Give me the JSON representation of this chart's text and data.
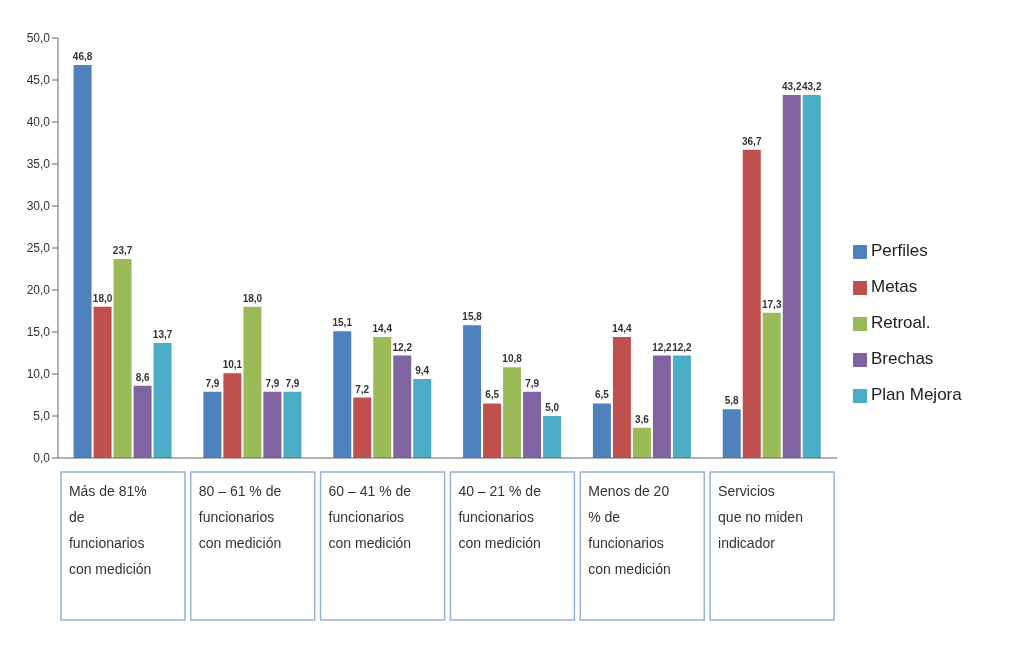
{
  "chart_data": {
    "type": "bar",
    "categories": [
      "Más de 81% de funcionarios con medición",
      "80 – 61 % de funcionarios con medición",
      "60 – 41 % de funcionarios con medición",
      "40 – 21 % de funcionarios con medición",
      "Menos de 20 % de funcionarios con medición",
      "Servicios que no miden indicador"
    ],
    "series": [
      {
        "name": "Perfiles",
        "color": "#4f81bd",
        "values": [
          46.8,
          7.9,
          15.1,
          15.8,
          6.5,
          5.8
        ],
        "value_labels": [
          "46,8",
          "7,9",
          "15,1",
          "15,8",
          "6,5",
          "5,8"
        ]
      },
      {
        "name": "Metas",
        "color": "#c0504d",
        "values": [
          18.0,
          10.1,
          7.2,
          6.5,
          14.4,
          36.7
        ],
        "value_labels": [
          "18,0",
          "10,1",
          "7,2",
          "6,5",
          "14,4",
          "36,7"
        ]
      },
      {
        "name": "Retroal.",
        "color": "#9bbb59",
        "values": [
          23.7,
          18.0,
          14.4,
          10.8,
          3.6,
          17.3
        ],
        "value_labels": [
          "23,7",
          "18,0",
          "14,4",
          "10,8",
          "3,6",
          "17,3"
        ]
      },
      {
        "name": "Brechas",
        "color": "#8064a2",
        "values": [
          8.6,
          7.9,
          12.2,
          7.9,
          12.2,
          43.2
        ],
        "value_labels": [
          "8,6",
          "7,9",
          "12,2",
          "7,9",
          "12,2",
          "43,2"
        ]
      },
      {
        "name": "Plan Mejora",
        "color": "#4bacc6",
        "values": [
          13.7,
          7.9,
          9.4,
          5.0,
          12.2,
          43.2
        ],
        "value_labels": [
          "13,7",
          "7,9",
          "9,4",
          "5,0",
          "12,2",
          "43,2"
        ]
      }
    ],
    "ylim": [
      0,
      50
    ],
    "yticks": [
      {
        "value": 0,
        "label": "0,0"
      },
      {
        "value": 5,
        "label": "5,0"
      },
      {
        "value": 10,
        "label": "10,0"
      },
      {
        "value": 15,
        "label": "15,0"
      },
      {
        "value": 20,
        "label": "20,0"
      },
      {
        "value": 25,
        "label": "25,0"
      },
      {
        "value": 30,
        "label": "30,0"
      },
      {
        "value": 35,
        "label": "35,0"
      },
      {
        "value": 40,
        "label": "40,0"
      },
      {
        "value": 45,
        "label": "45,0"
      },
      {
        "value": 50,
        "label": "50,0"
      }
    ],
    "grid": false,
    "legend": "right"
  }
}
